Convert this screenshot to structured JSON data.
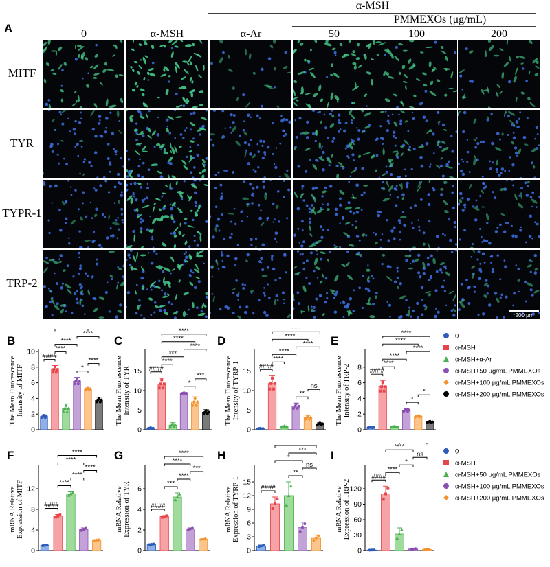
{
  "panel_letters": {
    "A": "A",
    "B": "B",
    "C": "C",
    "D": "D",
    "E": "E",
    "F": "F",
    "G": "G",
    "H": "H",
    "I": "I"
  },
  "header": {
    "group_label": "α-MSH",
    "subgroup_label": "PMMEXOs (μg/mL)",
    "conditions": [
      "0",
      "α-MSH",
      "α-Ar",
      "50",
      "100",
      "200"
    ]
  },
  "rows": [
    "MITF",
    "TYR",
    "TYPR-1",
    "TRP-2"
  ],
  "scale_bar": "200 μm",
  "colors": {
    "blue": "#2d5cb8",
    "red": "#e8454a",
    "green": "#4caf50",
    "purple": "#8a4fb0",
    "orange": "#f39431",
    "black": "#000000",
    "fill_blue": "#8fb0e6",
    "fill_red": "#f5a3a6",
    "fill_green": "#9fdc9c",
    "fill_purple": "#c3a2d8",
    "fill_orange": "#fbc58d",
    "fill_black": "#7a7a7a"
  },
  "legend_top": [
    "0",
    "α-MSH",
    "α-MSH+α-Ar",
    "α-MSH+50 μg/mL PMMEXOs",
    "α-MSH+100 μg/mL PMMEXOs",
    "α-MSH+200 μg/mL PMMEXOs"
  ],
  "legend_bottom": [
    "0",
    "α-MSH",
    "α-MSH+50 μg/mL PMMEXOs",
    "α-MSH+100 μg/mL PMMEXOs",
    "α-MSH+200 μg/mL PMMEXOs"
  ],
  "chart_data": [
    {
      "id": "B",
      "type": "bar",
      "ylabel": "The Mean Fluorescence Intensity of MITF",
      "ylim": [
        0,
        10
      ],
      "yticks": [
        "0",
        "2",
        "4",
        "6",
        "8",
        "10"
      ],
      "values": [
        1.7,
        7.7,
        2.7,
        6.2,
        5.2,
        3.8
      ],
      "errors": [
        0.2,
        0.5,
        0.6,
        0.5,
        0.15,
        0.35
      ],
      "brackets": [
        {
          "a": 0,
          "b": 1,
          "label": "####"
        },
        {
          "a": 1,
          "b": 2,
          "label": "****"
        },
        {
          "a": 1,
          "b": 3,
          "label": "****"
        },
        {
          "a": 1,
          "b": 4,
          "label": "****"
        },
        {
          "a": 1,
          "b": 5,
          "label": "****"
        },
        {
          "a": 3,
          "b": 5,
          "label": "****"
        },
        {
          "a": 3,
          "b": 4,
          "label": "*"
        },
        {
          "a": 4,
          "b": 5,
          "label": "****"
        }
      ]
    },
    {
      "id": "C",
      "type": "bar",
      "ylabel": "The Mean Fluorescence Intensity of TYR",
      "ylim": [
        0,
        20
      ],
      "yticks": [
        "0",
        "5",
        "10",
        "15"
      ],
      "values": [
        0.4,
        11.7,
        1.2,
        9.3,
        7.1,
        4.5
      ],
      "errors": [
        0.15,
        1.5,
        0.6,
        0.2,
        1.3,
        0.6
      ],
      "brackets": [
        {
          "a": 0,
          "b": 1,
          "label": "####"
        },
        {
          "a": 1,
          "b": 2,
          "label": "****"
        },
        {
          "a": 1,
          "b": 3,
          "label": "***"
        },
        {
          "a": 1,
          "b": 4,
          "label": "****"
        },
        {
          "a": 1,
          "b": 5,
          "label": "****"
        },
        {
          "a": 3,
          "b": 5,
          "label": "****"
        },
        {
          "a": 3,
          "b": 4,
          "label": "*"
        },
        {
          "a": 4,
          "b": 5,
          "label": "***"
        }
      ]
    },
    {
      "id": "D",
      "type": "bar",
      "ylabel": "The Mean Fluorescence Intensity of TYRP-1",
      "ylim": [
        0,
        20
      ],
      "yticks": [
        "0",
        "5",
        "10",
        "15"
      ],
      "values": [
        0.3,
        11.8,
        0.8,
        6.0,
        3.1,
        1.5
      ],
      "errors": [
        0.1,
        2.0,
        0.2,
        0.8,
        0.6,
        0.3
      ],
      "brackets": [
        {
          "a": 0,
          "b": 1,
          "label": "####"
        },
        {
          "a": 1,
          "b": 2,
          "label": "****"
        },
        {
          "a": 1,
          "b": 3,
          "label": "****"
        },
        {
          "a": 1,
          "b": 4,
          "label": "****"
        },
        {
          "a": 1,
          "b": 5,
          "label": "****"
        },
        {
          "a": 3,
          "b": 5,
          "label": "****"
        },
        {
          "a": 3,
          "b": 4,
          "label": "**"
        },
        {
          "a": 4,
          "b": 5,
          "label": "ns"
        }
      ]
    },
    {
      "id": "E",
      "type": "bar",
      "ylabel": "The Mean Fluorescence Intensity of TRP-2",
      "ylim": [
        0,
        10
      ],
      "yticks": [
        "0",
        "2",
        "4",
        "6",
        "8"
      ],
      "values": [
        0.3,
        5.5,
        0.4,
        2.5,
        1.7,
        1.0
      ],
      "errors": [
        0.05,
        0.8,
        0.05,
        0.2,
        0.1,
        0.1
      ],
      "brackets": [
        {
          "a": 0,
          "b": 1,
          "label": "####"
        },
        {
          "a": 1,
          "b": 2,
          "label": "****"
        },
        {
          "a": 1,
          "b": 3,
          "label": "****"
        },
        {
          "a": 1,
          "b": 4,
          "label": "****"
        },
        {
          "a": 1,
          "b": 5,
          "label": "****"
        },
        {
          "a": 3,
          "b": 5,
          "label": "****"
        },
        {
          "a": 3,
          "b": 4,
          "label": "*"
        },
        {
          "a": 4,
          "b": 5,
          "label": "*"
        }
      ]
    },
    {
      "id": "F",
      "type": "bar",
      "ylabel": "mRNA Relative Expression of MITF",
      "ylim": [
        0,
        16
      ],
      "yticks": [
        "0",
        "4",
        "8",
        "12"
      ],
      "values": [
        1.0,
        6.7,
        11.0,
        4.1,
        2.0
      ],
      "errors": [
        0.1,
        0.3,
        0.4,
        0.3,
        0.1
      ],
      "brackets": [
        {
          "a": 0,
          "b": 1,
          "label": "####"
        },
        {
          "a": 1,
          "b": 2,
          "label": "****"
        },
        {
          "a": 1,
          "b": 3,
          "label": "****"
        },
        {
          "a": 1,
          "b": 4,
          "label": "****"
        },
        {
          "a": 2,
          "b": 3,
          "label": "****"
        },
        {
          "a": 3,
          "b": 4,
          "label": "****"
        }
      ]
    },
    {
      "id": "G",
      "type": "bar",
      "ylabel": "mRNA Relative Expression of TYR",
      "ylim": [
        0,
        8
      ],
      "yticks": [
        "0",
        "2",
        "4",
        "6"
      ],
      "values": [
        0.6,
        3.3,
        5.2,
        2.1,
        1.1
      ],
      "errors": [
        0.05,
        0.1,
        0.4,
        0.1,
        0.05
      ],
      "brackets": [
        {
          "a": 0,
          "b": 1,
          "label": "####"
        },
        {
          "a": 1,
          "b": 2,
          "label": "***"
        },
        {
          "a": 1,
          "b": 3,
          "label": "****"
        },
        {
          "a": 1,
          "b": 4,
          "label": "****"
        },
        {
          "a": 2,
          "b": 3,
          "label": "****"
        },
        {
          "a": 3,
          "b": 4,
          "label": "***"
        }
      ]
    },
    {
      "id": "H",
      "type": "bar",
      "ylabel": "mRNA Relative Expression of TYRP-1",
      "ylim": [
        0,
        18
      ],
      "yticks": [
        "0",
        "3",
        "6",
        "9",
        "12",
        "15"
      ],
      "values": [
        1.0,
        10.2,
        12.0,
        5.0,
        2.7
      ],
      "errors": [
        0.2,
        1.5,
        3.0,
        1.2,
        0.7
      ],
      "brackets": [
        {
          "a": 0,
          "b": 1,
          "label": "####"
        },
        {
          "a": 1,
          "b": 3,
          "label": "*"
        },
        {
          "a": 1,
          "b": 4,
          "label": "**"
        },
        {
          "a": 2,
          "b": 3,
          "label": "**"
        },
        {
          "a": 2,
          "b": 4,
          "label": "***"
        },
        {
          "a": 3,
          "b": 4,
          "label": "ns"
        }
      ]
    },
    {
      "id": "I",
      "type": "bar",
      "ylabel": "mRNA Relative Expression of TRP-2",
      "ylim": [
        0,
        160
      ],
      "yticks": [
        "0",
        "30",
        "60",
        "90",
        "120"
      ],
      "values": [
        1.0,
        110.0,
        32.0,
        3.0,
        2.0
      ],
      "errors": [
        0.2,
        15.0,
        12.0,
        1.0,
        0.5
      ],
      "brackets": [
        {
          "a": 0,
          "b": 1,
          "label": "####"
        },
        {
          "a": 1,
          "b": 2,
          "label": "****"
        },
        {
          "a": 1,
          "b": 3,
          "label": "****"
        },
        {
          "a": 1,
          "b": 4,
          "label": "****"
        },
        {
          "a": 2,
          "b": 3,
          "label": "*"
        },
        {
          "a": 2,
          "b": 4,
          "label": "*"
        },
        {
          "a": 3,
          "b": 4,
          "label": "ns"
        }
      ]
    }
  ]
}
